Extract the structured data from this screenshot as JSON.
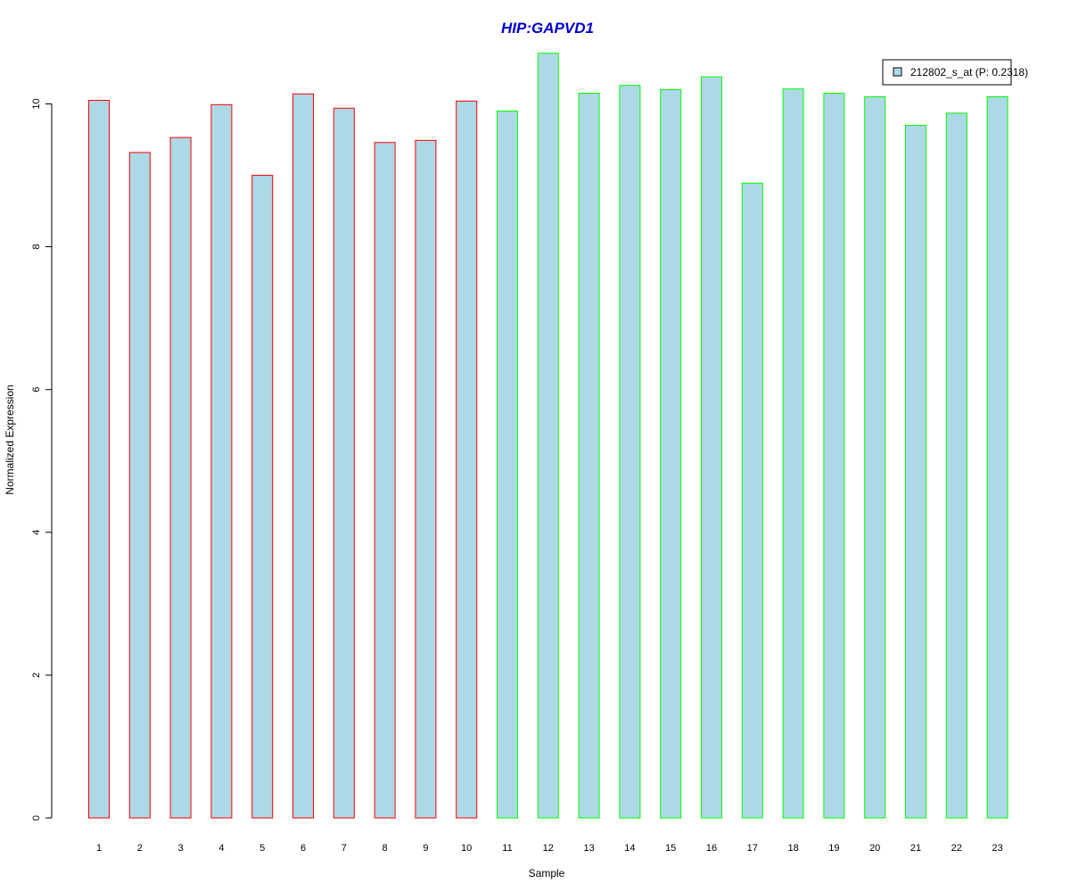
{
  "chart_data": {
    "type": "bar",
    "title": "HIP:GAPVD1",
    "xlabel": "Sample",
    "ylabel": "Normalized Expression",
    "ylim": [
      0,
      10.7
    ],
    "yticks": [
      0,
      2,
      4,
      6,
      8,
      10
    ],
    "grid": false,
    "legend_position": "top-right",
    "categories": [
      "1",
      "2",
      "3",
      "4",
      "5",
      "6",
      "7",
      "8",
      "9",
      "10",
      "11",
      "12",
      "13",
      "14",
      "15",
      "16",
      "17",
      "18",
      "19",
      "20",
      "21",
      "22",
      "23"
    ],
    "series": [
      {
        "name": "212802_s_at (P: 0.2318)",
        "values": [
          10.05,
          9.32,
          9.53,
          9.99,
          9.0,
          10.14,
          9.94,
          9.46,
          9.49,
          10.04,
          9.9,
          10.71,
          10.15,
          10.26,
          10.2,
          10.38,
          8.89,
          10.21,
          10.15,
          10.1,
          9.7,
          9.87,
          10.1
        ],
        "group": [
          "A",
          "A",
          "A",
          "A",
          "A",
          "A",
          "A",
          "A",
          "A",
          "A",
          "B",
          "B",
          "B",
          "B",
          "B",
          "B",
          "B",
          "B",
          "B",
          "B",
          "B",
          "B",
          "B"
        ]
      }
    ],
    "colors": {
      "fill": "#add8e6",
      "group_A_border": "#ff0000",
      "group_B_border": "#00ff00",
      "title": "#0000cd",
      "axis": "#000000"
    }
  }
}
